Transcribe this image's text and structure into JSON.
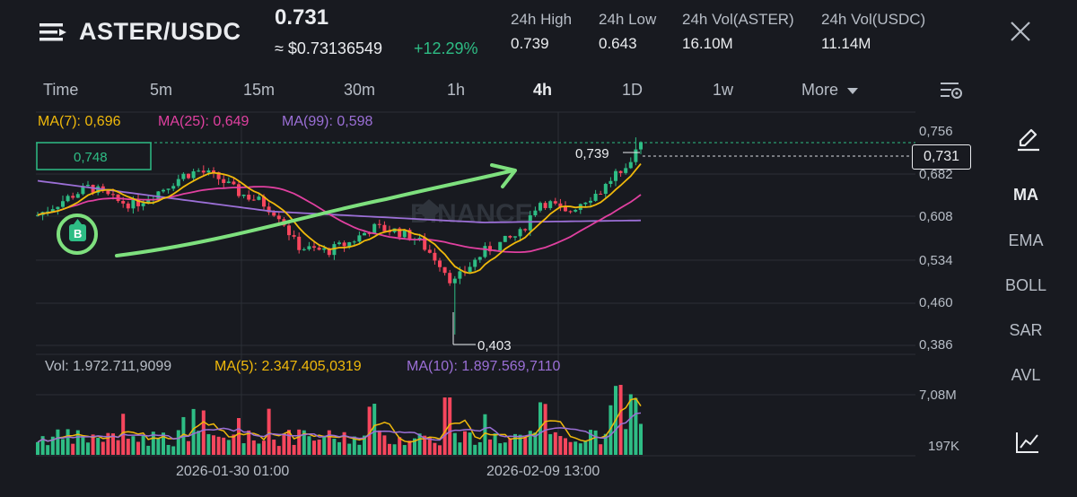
{
  "header": {
    "pair": "ASTER/USDC",
    "price": "0.731",
    "usd_price": "≈ $0.73136549",
    "change": "+12.29%",
    "stats": [
      {
        "label": "24h High",
        "value": "0.739"
      },
      {
        "label": "24h Low",
        "value": "0.643"
      },
      {
        "label": "24h Vol(ASTER)",
        "value": "16.10M"
      },
      {
        "label": "24h Vol(USDC)",
        "value": "11.14M"
      }
    ]
  },
  "timeframes": [
    "Time",
    "5m",
    "15m",
    "30m",
    "1h",
    "4h",
    "1D",
    "1w",
    "More"
  ],
  "active_timeframe": "4h",
  "indicators": [
    "MA",
    "EMA",
    "BOLL",
    "SAR",
    "AVL"
  ],
  "active_indicator": "MA",
  "ma_legend": {
    "ma7": "MA(7): 0,696",
    "ma25": "MA(25): 0,649",
    "ma99": "MA(99): 0,598"
  },
  "vol_legend": {
    "vol": "Vol: 1.972.711,9099",
    "ma5": "MA(5): 2.347.405,0319",
    "ma10": "MA(10): 1.897.569,7110"
  },
  "price_axis": [
    "0,756",
    "0,682",
    "0,608",
    "0,534",
    "0,460",
    "0,386"
  ],
  "current_price_tag": "0,731",
  "order_line_label": "0,748",
  "high_label": "0,739",
  "low_label": "0,403",
  "volume_axis": [
    "7,08M",
    "197K"
  ],
  "time_axis": [
    "2026-01-30 01:00",
    "2026-02-09 13:00"
  ],
  "watermark": "BINANCE",
  "buy_marker": "B",
  "colors": {
    "up": "#2ebd85",
    "down": "#f6465d",
    "ma7": "#f0b90b",
    "ma25": "#e040a0",
    "ma99": "#9b6fd6",
    "annotation": "#7ee07e"
  },
  "chart_data": {
    "type": "candlestick",
    "close_start": 0.61,
    "high": 0.739,
    "low": 0.403,
    "last": 0.731,
    "ylim": [
      0.37,
      0.77
    ]
  }
}
